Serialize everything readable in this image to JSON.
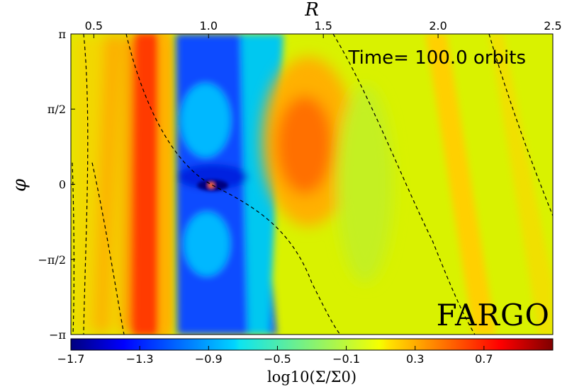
{
  "chart_data": {
    "type": "heatmap",
    "colormap": "jet",
    "xlabel": "R",
    "ylabel": "φ",
    "x_ticks": [
      {
        "value": 0.5,
        "label": "0.5"
      },
      {
        "value": 1.0,
        "label": "1.0"
      },
      {
        "value": 1.5,
        "label": "1.5"
      },
      {
        "value": 2.0,
        "label": "2.0"
      },
      {
        "value": 2.5,
        "label": "2.5"
      }
    ],
    "y_ticks": [
      {
        "value": 3.14159,
        "label": "π"
      },
      {
        "value": 1.5708,
        "label": "π/2"
      },
      {
        "value": 0,
        "label": "0"
      },
      {
        "value": -1.5708,
        "label": "−π/2"
      },
      {
        "value": -3.14159,
        "label": "−π"
      }
    ],
    "xlim": [
      0.4,
      2.5
    ],
    "ylim": [
      -3.14159,
      3.14159
    ],
    "colorbar": {
      "label": "log10(Σ/Σ0)",
      "range": [
        -1.7,
        1.1
      ],
      "ticks": [
        {
          "value": -1.7,
          "label": "−1.7"
        },
        {
          "value": -1.3,
          "label": "−1.3"
        },
        {
          "value": -0.9,
          "label": "−0.9"
        },
        {
          "value": -0.5,
          "label": "−0.5"
        },
        {
          "value": -0.1,
          "label": "−0.1"
        },
        {
          "value": 0.3,
          "label": "0.3"
        },
        {
          "value": 0.7,
          "label": "0.7"
        }
      ]
    },
    "annotations": [
      "Time= 100.0 orbits",
      "FARGO"
    ],
    "grid": false,
    "planet": {
      "R": 1.0,
      "phi": 0.0
    },
    "density_features": [
      {
        "kind": "outer-background",
        "log_value": 0.05
      },
      {
        "kind": "gap-band",
        "R_range": [
          0.87,
          1.25
        ],
        "log_value": -1.3
      },
      {
        "kind": "inner-disc-band",
        "R_range": [
          0.4,
          0.85
        ],
        "log_value": 0.4
      },
      {
        "kind": "vortex",
        "R": 1.45,
        "phi": 0.75,
        "log_value": 0.45
      }
    ]
  }
}
